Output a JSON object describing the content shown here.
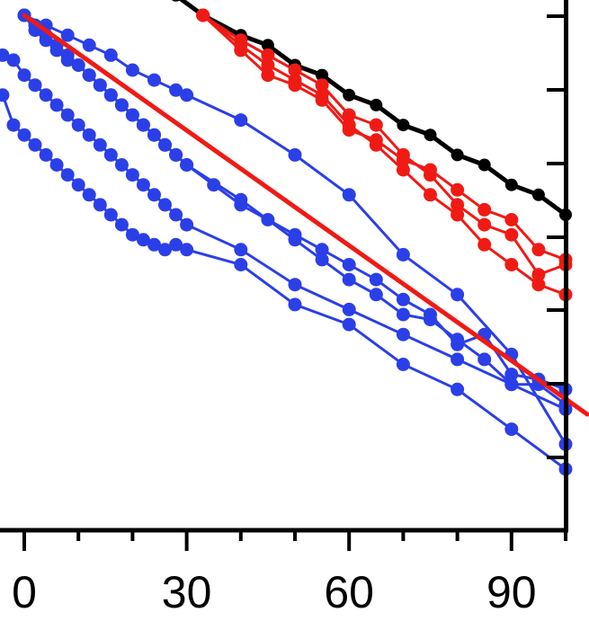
{
  "chart_data": {
    "type": "line",
    "title": "",
    "xlabel": "",
    "ylabel": "",
    "xlim": [
      -4,
      100
    ],
    "ylim": [
      0,
      100
    ],
    "x_ticks": [
      0,
      30,
      60,
      90
    ],
    "x_tick_labels": [
      "0",
      "30",
      "60",
      "90"
    ],
    "y_ticks": [
      14,
      27,
      41,
      55,
      68,
      82,
      96
    ],
    "grid": false,
    "legend": "none",
    "colors": {
      "blue": "#2b3fe8",
      "red": "#f01a14",
      "black": "#000000",
      "axis": "#000000"
    },
    "series": [
      {
        "color": "#000000",
        "points": [
          [
            28,
            102
          ],
          [
            33,
            100
          ],
          [
            40,
            98
          ],
          [
            45,
            97
          ],
          [
            50,
            95
          ],
          [
            55,
            94
          ],
          [
            60,
            92
          ],
          [
            65,
            91
          ],
          [
            70,
            89
          ],
          [
            75,
            88
          ],
          [
            80,
            86
          ],
          [
            85,
            85
          ],
          [
            90,
            83
          ],
          [
            95,
            82
          ],
          [
            100,
            80
          ]
        ]
      },
      {
        "color": "#f01a14",
        "points": [
          [
            33,
            100
          ],
          [
            40,
            97.5
          ],
          [
            45,
            96
          ],
          [
            50,
            94.5
          ],
          [
            55,
            93
          ],
          [
            60,
            90
          ],
          [
            65,
            89
          ],
          [
            70,
            86
          ],
          [
            75,
            84
          ],
          [
            80,
            81
          ],
          [
            85,
            79
          ],
          [
            90,
            78
          ],
          [
            95,
            74
          ],
          [
            100,
            75
          ]
        ]
      },
      {
        "color": "#f01a14",
        "points": [
          [
            33,
            100
          ],
          [
            40,
            96.5
          ],
          [
            45,
            94
          ],
          [
            50,
            93
          ],
          [
            55,
            91.5
          ],
          [
            60,
            88.5
          ],
          [
            65,
            87.5
          ],
          [
            70,
            85.5
          ],
          [
            75,
            84.5
          ],
          [
            80,
            82.5
          ],
          [
            85,
            80.5
          ],
          [
            90,
            79.5
          ],
          [
            95,
            76.5
          ],
          [
            100,
            75.5
          ]
        ]
      },
      {
        "color": "#f01a14",
        "points": [
          [
            33,
            100
          ],
          [
            40,
            97
          ],
          [
            45,
            95
          ],
          [
            50,
            93.5
          ],
          [
            55,
            92
          ],
          [
            60,
            89
          ],
          [
            65,
            87
          ],
          [
            70,
            84.5
          ],
          [
            75,
            82
          ],
          [
            80,
            80
          ],
          [
            85,
            77
          ],
          [
            90,
            75
          ],
          [
            95,
            73
          ],
          [
            100,
            72
          ]
        ]
      },
      {
        "color": "#2b3fe8",
        "points": [
          [
            -4,
            96
          ],
          [
            -2,
            95.5
          ],
          [
            0,
            94
          ],
          [
            2,
            93
          ],
          [
            4,
            92
          ],
          [
            6,
            91
          ],
          [
            8,
            90
          ],
          [
            10,
            89
          ],
          [
            12,
            88
          ],
          [
            14,
            87
          ],
          [
            16,
            86
          ],
          [
            18,
            85
          ],
          [
            20,
            84
          ],
          [
            22,
            83
          ],
          [
            24,
            82
          ],
          [
            26,
            81
          ],
          [
            28,
            80
          ],
          [
            30,
            79
          ],
          [
            40,
            76.5
          ],
          [
            50,
            73
          ],
          [
            60,
            70.5
          ],
          [
            70,
            68
          ],
          [
            80,
            65.5
          ],
          [
            90,
            63
          ],
          [
            100,
            60.5
          ]
        ]
      },
      {
        "color": "#2b3fe8",
        "points": [
          [
            -4,
            92
          ],
          [
            -2,
            89
          ],
          [
            0,
            88
          ],
          [
            2,
            87
          ],
          [
            4,
            86
          ],
          [
            6,
            85
          ],
          [
            8,
            84
          ],
          [
            10,
            83
          ],
          [
            12,
            82
          ],
          [
            14,
            81
          ],
          [
            16,
            80
          ],
          [
            18,
            79
          ],
          [
            20,
            78
          ],
          [
            22,
            77.5
          ],
          [
            24,
            77
          ],
          [
            26,
            76.5
          ],
          [
            28,
            77
          ],
          [
            30,
            76.5
          ],
          [
            40,
            75
          ],
          [
            50,
            71
          ],
          [
            60,
            69
          ],
          [
            70,
            65
          ],
          [
            80,
            62.5
          ],
          [
            90,
            58.5
          ],
          [
            100,
            54.5
          ]
        ]
      },
      {
        "color": "#2b3fe8",
        "points": [
          [
            0,
            100
          ],
          [
            2,
            99
          ],
          [
            4,
            98
          ],
          [
            6,
            97
          ],
          [
            8,
            96
          ],
          [
            10,
            95
          ],
          [
            12,
            94
          ],
          [
            14,
            93
          ],
          [
            16,
            92
          ],
          [
            18,
            91
          ],
          [
            20,
            90
          ],
          [
            22,
            89
          ],
          [
            24,
            88
          ],
          [
            26,
            87
          ],
          [
            28,
            86
          ],
          [
            30,
            85
          ],
          [
            35,
            83
          ],
          [
            40,
            81
          ],
          [
            45,
            79.5
          ],
          [
            50,
            78
          ],
          [
            55,
            76.5
          ],
          [
            60,
            75
          ],
          [
            65,
            73.5
          ],
          [
            70,
            71.5
          ],
          [
            75,
            70
          ],
          [
            80,
            67
          ],
          [
            85,
            68
          ],
          [
            90,
            64
          ],
          [
            95,
            63.5
          ],
          [
            100,
            62.5
          ]
        ]
      },
      {
        "color": "#2b3fe8",
        "points": [
          [
            0,
            100
          ],
          [
            2,
            98.5
          ],
          [
            4,
            97.5
          ],
          [
            6,
            96.5
          ],
          [
            8,
            95.5
          ],
          [
            10,
            95
          ],
          [
            12,
            94
          ],
          [
            14,
            93
          ],
          [
            16,
            92
          ],
          [
            18,
            91
          ],
          [
            20,
            90
          ],
          [
            22,
            89
          ],
          [
            24,
            88
          ],
          [
            26,
            87
          ],
          [
            28,
            86
          ],
          [
            30,
            85
          ],
          [
            40,
            81.5
          ],
          [
            50,
            77.5
          ],
          [
            55,
            75.5
          ],
          [
            60,
            73.5
          ],
          [
            65,
            72
          ],
          [
            70,
            70
          ],
          [
            75,
            69.5
          ],
          [
            80,
            67.5
          ],
          [
            85,
            65.5
          ],
          [
            90,
            63
          ],
          [
            95,
            63
          ],
          [
            100,
            61
          ]
        ]
      },
      {
        "color": "#2b3fe8",
        "points": [
          [
            0,
            100
          ],
          [
            4,
            99
          ],
          [
            8,
            98
          ],
          [
            12,
            97
          ],
          [
            16,
            96
          ],
          [
            20,
            94.5
          ],
          [
            24,
            93.5
          ],
          [
            28,
            92.5
          ],
          [
            30,
            92
          ],
          [
            40,
            89.5
          ],
          [
            50,
            86
          ],
          [
            60,
            82
          ],
          [
            70,
            76
          ],
          [
            80,
            72
          ],
          [
            90,
            66
          ],
          [
            100,
            57
          ]
        ]
      }
    ],
    "fit_line": {
      "color": "#f01a14",
      "points": [
        [
          0,
          100
        ],
        [
          104,
          60
        ]
      ]
    }
  }
}
